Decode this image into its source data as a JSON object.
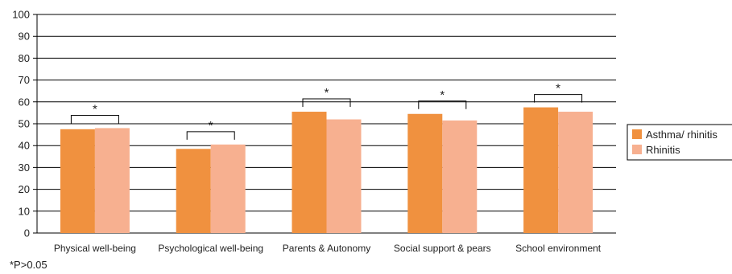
{
  "chart_data": {
    "type": "bar",
    "categories": [
      "Physical well-being",
      "Psychological well-being",
      "Parents & Autonomy",
      "Social support & pears",
      "School environment"
    ],
    "series": [
      {
        "name": "Asthma/ rhinitis",
        "color": "#f0913f",
        "values": [
          47.5,
          38.5,
          55.5,
          54.5,
          57.5
        ]
      },
      {
        "name": "Rhinitis",
        "color": "#f7b090",
        "values": [
          48,
          40.5,
          52,
          51.5,
          55.5
        ]
      }
    ],
    "ylim": [
      0,
      100
    ],
    "yticks": [
      0,
      10,
      20,
      30,
      40,
      50,
      60,
      70,
      80,
      90,
      100
    ],
    "grid": true,
    "legend_position": "right",
    "annotations": {
      "significance_marker": "*",
      "bracket_on_every_category": true
    }
  },
  "footnote": "*P>0.05"
}
